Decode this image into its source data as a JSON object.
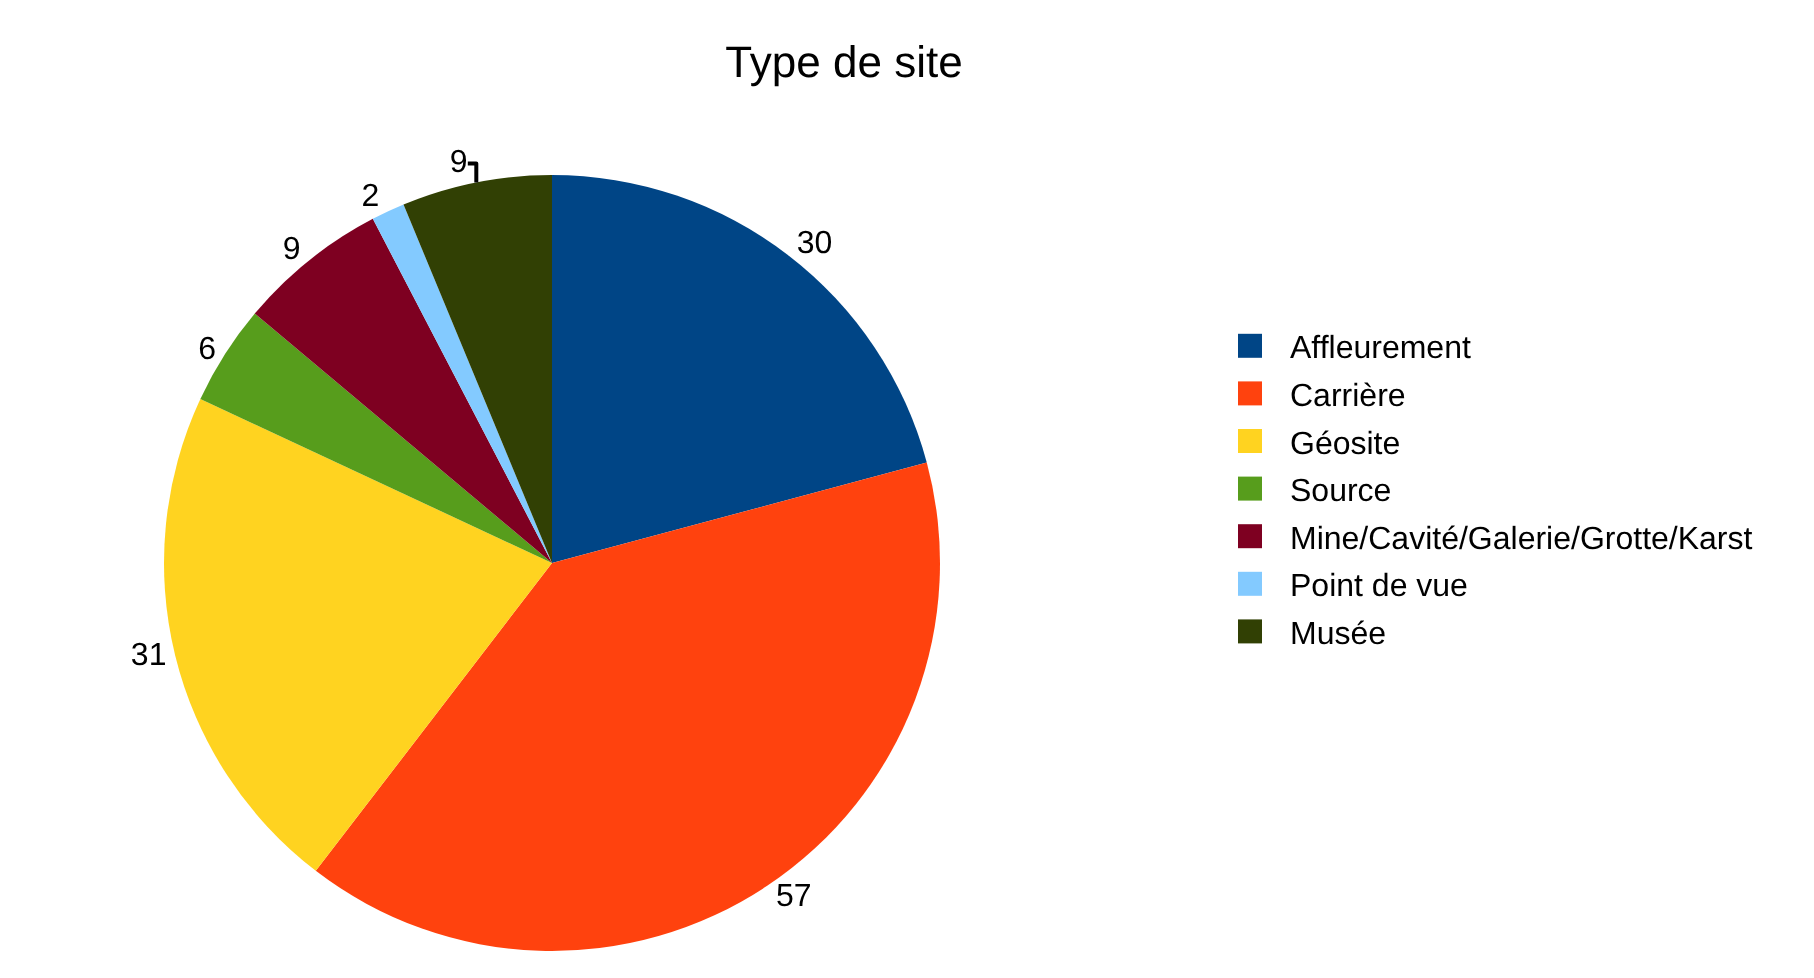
{
  "chart_data": {
    "type": "pie",
    "title": "Type de site",
    "categories": [
      "Affleurement",
      "Carrière",
      "Géosite",
      "Source",
      "Mine/Cavité/Galerie/Grotte/Karst",
      "Point de vue",
      "Musée"
    ],
    "values": [
      30,
      57,
      31,
      6,
      9,
      2,
      9
    ],
    "colors": [
      "#004586",
      "#ff420e",
      "#ffd320",
      "#579d1c",
      "#7e0021",
      "#83caff",
      "#314004"
    ],
    "data_labels": true,
    "legend": "right"
  }
}
